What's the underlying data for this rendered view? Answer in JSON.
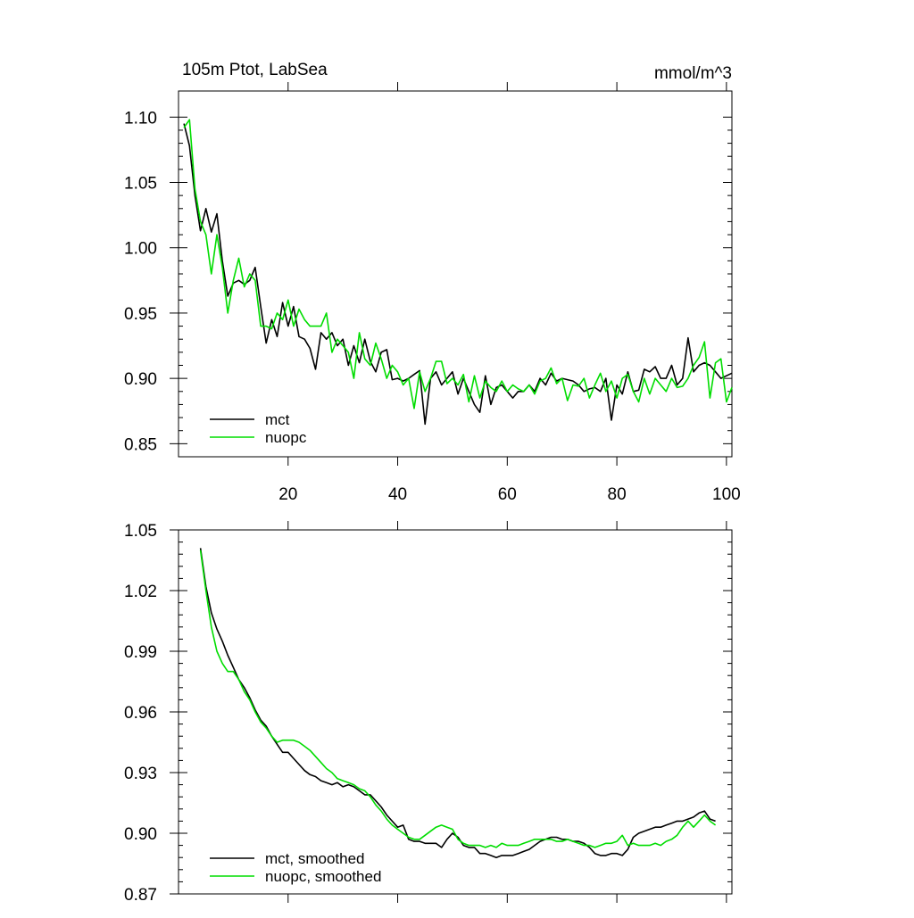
{
  "chart_data": [
    {
      "type": "line",
      "title": "105m Ptot, LabSea",
      "units": "mmol/m^3",
      "xlabel": "",
      "ylabel": "",
      "xlim": [
        0,
        101
      ],
      "ylim": [
        0.84,
        1.12
      ],
      "xticks": [
        20,
        40,
        60,
        80,
        100
      ],
      "xtick_labels": [
        "20",
        "40",
        "60",
        "80",
        "100"
      ],
      "yticks": [
        0.85,
        0.9,
        0.95,
        1.0,
        1.05,
        1.1
      ],
      "ytick_labels": [
        "0.85",
        "0.90",
        "0.95",
        "1.00",
        "1.05",
        "1.10"
      ],
      "grid": false,
      "legend_position": "bottom-left",
      "series": [
        {
          "name": "mct",
          "color": "#000000",
          "x": [
            1,
            2,
            3,
            4,
            5,
            6,
            7,
            8,
            9,
            10,
            11,
            12,
            13,
            14,
            15,
            16,
            17,
            18,
            19,
            20,
            21,
            22,
            23,
            24,
            25,
            26,
            27,
            28,
            29,
            30,
            31,
            32,
            33,
            34,
            35,
            36,
            37,
            38,
            39,
            40,
            41,
            42,
            43,
            44,
            45,
            46,
            47,
            48,
            49,
            50,
            51,
            52,
            53,
            54,
            55,
            56,
            57,
            58,
            59,
            60,
            61,
            62,
            63,
            64,
            65,
            66,
            67,
            68,
            69,
            70,
            71,
            72,
            73,
            74,
            75,
            76,
            77,
            78,
            79,
            80,
            81,
            82,
            83,
            84,
            85,
            86,
            87,
            88,
            89,
            90,
            91,
            92,
            93,
            94,
            95,
            96,
            97,
            98,
            99,
            100,
            101
          ],
          "values": [
            1.095,
            1.078,
            1.04,
            1.013,
            1.03,
            1.012,
            1.026,
            0.99,
            0.963,
            0.973,
            0.975,
            0.972,
            0.975,
            0.985,
            0.955,
            0.927,
            0.945,
            0.932,
            0.958,
            0.94,
            0.955,
            0.932,
            0.93,
            0.923,
            0.907,
            0.935,
            0.93,
            0.935,
            0.925,
            0.93,
            0.91,
            0.925,
            0.912,
            0.93,
            0.913,
            0.905,
            0.92,
            0.922,
            0.899,
            0.9,
            0.898,
            0.9,
            0.903,
            0.906,
            0.865,
            0.9,
            0.905,
            0.895,
            0.9,
            0.905,
            0.888,
            0.9,
            0.89,
            0.88,
            0.874,
            0.902,
            0.88,
            0.893,
            0.895,
            0.89,
            0.885,
            0.89,
            0.89,
            0.895,
            0.89,
            0.9,
            0.895,
            0.904,
            0.898,
            0.9,
            0.899,
            0.898,
            0.895,
            0.89,
            0.892,
            0.893,
            0.89,
            0.9,
            0.868,
            0.895,
            0.888,
            0.905,
            0.89,
            0.891,
            0.907,
            0.905,
            0.909,
            0.9,
            0.9,
            0.91,
            0.895,
            0.9,
            0.931,
            0.905,
            0.91,
            0.912,
            0.91,
            0.905,
            0.9,
            0.902,
            0.904
          ]
        },
        {
          "name": "nuopc",
          "color": "#00dd00",
          "x": [
            1,
            2,
            3,
            4,
            5,
            6,
            7,
            8,
            9,
            10,
            11,
            12,
            13,
            14,
            15,
            16,
            17,
            18,
            19,
            20,
            21,
            22,
            23,
            24,
            25,
            26,
            27,
            28,
            29,
            30,
            31,
            32,
            33,
            34,
            35,
            36,
            37,
            38,
            39,
            40,
            41,
            42,
            43,
            44,
            45,
            46,
            47,
            48,
            49,
            50,
            51,
            52,
            53,
            54,
            55,
            56,
            57,
            58,
            59,
            60,
            61,
            62,
            63,
            64,
            65,
            66,
            67,
            68,
            69,
            70,
            71,
            72,
            73,
            74,
            75,
            76,
            77,
            78,
            79,
            80,
            81,
            82,
            83,
            84,
            85,
            86,
            87,
            88,
            89,
            90,
            91,
            92,
            93,
            94,
            95,
            96,
            97,
            98,
            99,
            100,
            101
          ],
          "values": [
            1.092,
            1.098,
            1.045,
            1.02,
            1.01,
            0.98,
            1.01,
            0.985,
            0.95,
            0.975,
            0.992,
            0.97,
            0.98,
            0.975,
            0.94,
            0.94,
            0.938,
            0.95,
            0.945,
            0.96,
            0.94,
            0.953,
            0.945,
            0.94,
            0.94,
            0.94,
            0.95,
            0.92,
            0.93,
            0.925,
            0.92,
            0.9,
            0.935,
            0.915,
            0.91,
            0.927,
            0.915,
            0.9,
            0.91,
            0.905,
            0.895,
            0.9,
            0.877,
            0.905,
            0.89,
            0.9,
            0.913,
            0.913,
            0.896,
            0.9,
            0.895,
            0.903,
            0.882,
            0.902,
            0.885,
            0.898,
            0.893,
            0.89,
            0.898,
            0.89,
            0.895,
            0.892,
            0.89,
            0.895,
            0.888,
            0.898,
            0.9,
            0.908,
            0.896,
            0.9,
            0.883,
            0.895,
            0.894,
            0.9,
            0.885,
            0.895,
            0.904,
            0.89,
            0.898,
            0.885,
            0.9,
            0.903,
            0.89,
            0.882,
            0.9,
            0.888,
            0.9,
            0.895,
            0.89,
            0.9,
            0.893,
            0.894,
            0.9,
            0.91,
            0.916,
            0.928,
            0.885,
            0.912,
            0.915,
            0.882,
            0.893
          ]
        }
      ]
    },
    {
      "type": "line",
      "title": "",
      "xlabel": "",
      "ylabel": "",
      "xlim": [
        0,
        101
      ],
      "ylim": [
        0.87,
        1.05
      ],
      "xticks": [
        20,
        40,
        60,
        80,
        100
      ],
      "xtick_labels": [],
      "yticks": [
        0.87,
        0.9,
        0.93,
        0.96,
        0.99,
        1.02,
        1.05
      ],
      "ytick_labels": [
        "0.87",
        "0.90",
        "0.93",
        "0.96",
        "0.99",
        "1.02",
        "1.05"
      ],
      "grid": false,
      "legend_position": "bottom-left",
      "series": [
        {
          "name": "mct, smoothed",
          "color": "#000000",
          "x": [
            4,
            5,
            6,
            7,
            8,
            9,
            10,
            11,
            12,
            13,
            14,
            15,
            16,
            17,
            18,
            19,
            20,
            21,
            22,
            23,
            24,
            25,
            26,
            27,
            28,
            29,
            30,
            31,
            32,
            33,
            34,
            35,
            36,
            37,
            38,
            39,
            40,
            41,
            42,
            43,
            44,
            45,
            46,
            47,
            48,
            49,
            50,
            51,
            52,
            53,
            54,
            55,
            56,
            57,
            58,
            59,
            60,
            61,
            62,
            63,
            64,
            65,
            66,
            67,
            68,
            69,
            70,
            71,
            72,
            73,
            74,
            75,
            76,
            77,
            78,
            79,
            80,
            81,
            82,
            83,
            84,
            85,
            86,
            87,
            88,
            89,
            90,
            91,
            92,
            93,
            94,
            95,
            96,
            97,
            98
          ],
          "values": [
            1.041,
            1.022,
            1.009,
            1.001,
            0.995,
            0.988,
            0.982,
            0.976,
            0.972,
            0.967,
            0.961,
            0.956,
            0.953,
            0.948,
            0.944,
            0.94,
            0.94,
            0.937,
            0.934,
            0.931,
            0.929,
            0.928,
            0.926,
            0.925,
            0.924,
            0.925,
            0.923,
            0.924,
            0.923,
            0.921,
            0.919,
            0.919,
            0.916,
            0.913,
            0.909,
            0.906,
            0.903,
            0.904,
            0.897,
            0.896,
            0.896,
            0.895,
            0.895,
            0.895,
            0.893,
            0.897,
            0.9,
            0.898,
            0.894,
            0.893,
            0.893,
            0.89,
            0.89,
            0.889,
            0.888,
            0.889,
            0.889,
            0.889,
            0.89,
            0.891,
            0.892,
            0.894,
            0.896,
            0.897,
            0.898,
            0.898,
            0.897,
            0.897,
            0.896,
            0.896,
            0.895,
            0.893,
            0.89,
            0.889,
            0.889,
            0.89,
            0.89,
            0.889,
            0.892,
            0.898,
            0.9,
            0.901,
            0.902,
            0.903,
            0.903,
            0.904,
            0.905,
            0.906,
            0.906,
            0.907,
            0.908,
            0.91,
            0.911,
            0.907,
            0.906
          ]
        },
        {
          "name": "nuopc, smoothed",
          "color": "#00dd00",
          "x": [
            4,
            5,
            6,
            7,
            8,
            9,
            10,
            11,
            12,
            13,
            14,
            15,
            16,
            17,
            18,
            19,
            20,
            21,
            22,
            23,
            24,
            25,
            26,
            27,
            28,
            29,
            30,
            31,
            32,
            33,
            34,
            35,
            36,
            37,
            38,
            39,
            40,
            41,
            42,
            43,
            44,
            45,
            46,
            47,
            48,
            49,
            50,
            51,
            52,
            53,
            54,
            55,
            56,
            57,
            58,
            59,
            60,
            61,
            62,
            63,
            64,
            65,
            66,
            67,
            68,
            69,
            70,
            71,
            72,
            73,
            74,
            75,
            76,
            77,
            78,
            79,
            80,
            81,
            82,
            83,
            84,
            85,
            86,
            87,
            88,
            89,
            90,
            91,
            92,
            93,
            94,
            95,
            96,
            97,
            98
          ],
          "values": [
            1.04,
            1.02,
            1.002,
            0.99,
            0.984,
            0.98,
            0.98,
            0.976,
            0.97,
            0.966,
            0.96,
            0.955,
            0.952,
            0.948,
            0.945,
            0.946,
            0.946,
            0.946,
            0.945,
            0.943,
            0.941,
            0.938,
            0.935,
            0.932,
            0.93,
            0.927,
            0.926,
            0.925,
            0.924,
            0.922,
            0.921,
            0.918,
            0.914,
            0.911,
            0.907,
            0.904,
            0.902,
            0.9,
            0.898,
            0.897,
            0.897,
            0.899,
            0.901,
            0.903,
            0.904,
            0.903,
            0.902,
            0.897,
            0.895,
            0.894,
            0.894,
            0.894,
            0.893,
            0.894,
            0.893,
            0.895,
            0.894,
            0.894,
            0.894,
            0.895,
            0.896,
            0.897,
            0.897,
            0.897,
            0.897,
            0.896,
            0.896,
            0.897,
            0.896,
            0.895,
            0.894,
            0.894,
            0.893,
            0.894,
            0.895,
            0.895,
            0.896,
            0.899,
            0.894,
            0.895,
            0.894,
            0.894,
            0.894,
            0.895,
            0.894,
            0.896,
            0.897,
            0.899,
            0.903,
            0.906,
            0.903,
            0.906,
            0.909,
            0.906,
            0.904
          ]
        }
      ]
    }
  ]
}
